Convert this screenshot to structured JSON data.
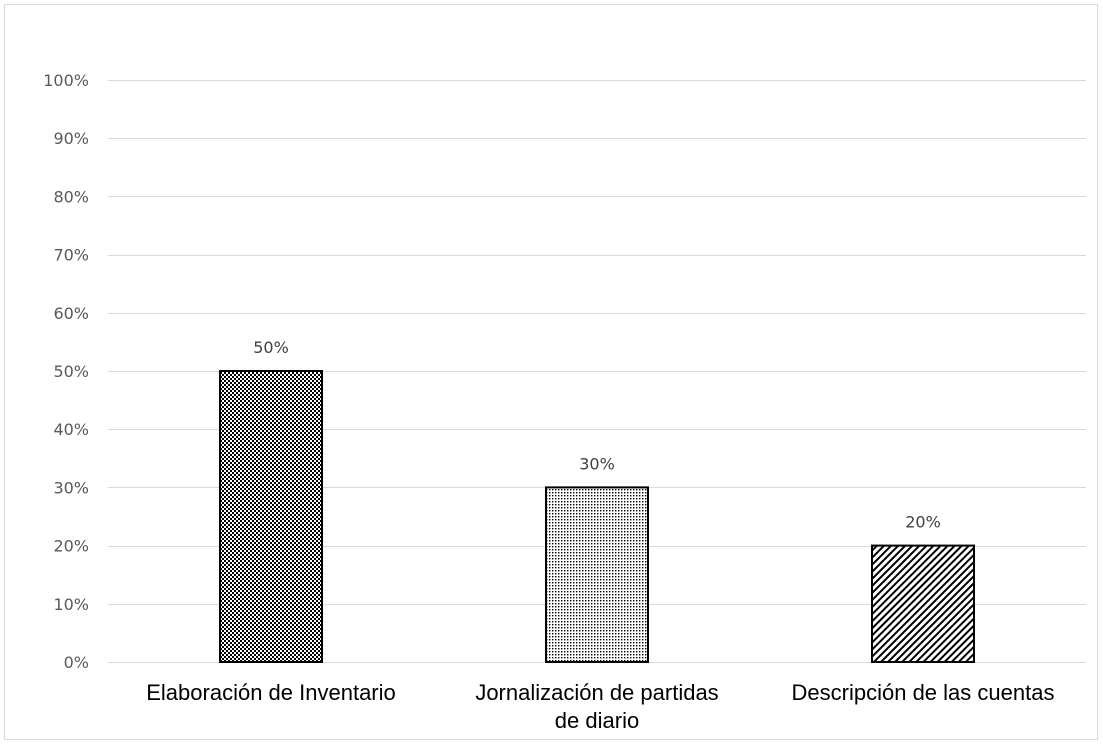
{
  "chart_data": {
    "type": "bar",
    "title": "",
    "xlabel": "",
    "ylabel": "",
    "categories": [
      "Elaboración de Inventario",
      "Jornalización de partidas de diario",
      "Descripción de las cuentas"
    ],
    "category_lines": [
      [
        "Elaboración de Inventario"
      ],
      [
        "Jornalización de partidas",
        "de diario"
      ],
      [
        "Descripción de las cuentas"
      ]
    ],
    "values": [
      50,
      30,
      20
    ],
    "data_labels": [
      "50%",
      "30%",
      "20%"
    ],
    "ylim": [
      0,
      100
    ],
    "yticks": [
      0,
      10,
      20,
      30,
      40,
      50,
      60,
      70,
      80,
      90,
      100
    ],
    "ytick_labels": [
      "0%",
      "10%",
      "20%",
      "30%",
      "40%",
      "50%",
      "60%",
      "70%",
      "80%",
      "90%",
      "100%"
    ],
    "patterns": [
      "checker",
      "dots",
      "diagonal"
    ],
    "grid": true,
    "legend": "none",
    "colors": {
      "bar_outline": "#000000",
      "gridline": "#d9d9d9",
      "tick_text": "#595959"
    }
  }
}
